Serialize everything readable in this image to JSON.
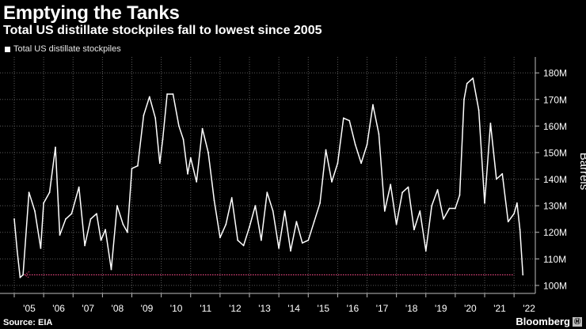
{
  "header": {
    "title": "Emptying the Tanks",
    "subtitle": "Total US distillate stockpiles fall to lowest since 2005"
  },
  "footer": {
    "source": "Source: EIA",
    "brand": "Bloomberg",
    "brand_badge": "Ⓜ"
  },
  "chart_data": {
    "type": "line",
    "title": "Emptying the Tanks",
    "subtitle": "Total US distillate stockpiles fall to lowest since 2005",
    "xlabel": "",
    "ylabel": "Barrels",
    "ylim": [
      97,
      186
    ],
    "xlim": [
      2005.0,
      2022.4
    ],
    "grid": true,
    "legend": "top-left",
    "x_tick_labels": [
      "'05",
      "'06",
      "'07",
      "'08",
      "'09",
      "'10",
      "'11",
      "'12",
      "'13",
      "'14",
      "'15",
      "'16",
      "'17",
      "'18",
      "'19",
      "'20",
      "'21",
      "'22"
    ],
    "x_ticks": [
      2005,
      2006,
      2007,
      2008,
      2009,
      2010,
      2011,
      2012,
      2013,
      2014,
      2015,
      2016,
      2017,
      2018,
      2019,
      2020,
      2021,
      2022
    ],
    "y_ticks": [
      100,
      110,
      120,
      130,
      140,
      150,
      160,
      170,
      180
    ],
    "y_tick_labels": [
      "100M",
      "110M",
      "120M",
      "130M",
      "140M",
      "150M",
      "160M",
      "170M",
      "180M"
    ],
    "series": [
      {
        "name": "Total US distillate stockpiles",
        "color": "#ffffff",
        "x": [
          2005.0,
          2005.1,
          2005.2,
          2005.3,
          2005.5,
          2005.7,
          2005.9,
          2006.0,
          2006.2,
          2006.4,
          2006.55,
          2006.75,
          2006.95,
          2007.2,
          2007.4,
          2007.6,
          2007.8,
          2007.95,
          2008.1,
          2008.3,
          2008.5,
          2008.7,
          2008.85,
          2009.0,
          2009.2,
          2009.4,
          2009.6,
          2009.8,
          2009.95,
          2010.05,
          2010.2,
          2010.4,
          2010.6,
          2010.75,
          2010.9,
          2011.0,
          2011.2,
          2011.4,
          2011.6,
          2011.8,
          2012.0,
          2012.2,
          2012.4,
          2012.6,
          2012.8,
          2013.0,
          2013.2,
          2013.4,
          2013.6,
          2013.8,
          2014.0,
          2014.2,
          2014.4,
          2014.6,
          2014.8,
          2015.0,
          2015.2,
          2015.4,
          2015.6,
          2015.8,
          2016.0,
          2016.2,
          2016.4,
          2016.6,
          2016.8,
          2017.0,
          2017.2,
          2017.4,
          2017.6,
          2017.8,
          2018.0,
          2018.2,
          2018.4,
          2018.6,
          2018.8,
          2019.0,
          2019.2,
          2019.4,
          2019.6,
          2019.8,
          2020.0,
          2020.15,
          2020.3,
          2020.4,
          2020.6,
          2020.8,
          2021.0,
          2021.2,
          2021.4,
          2021.6,
          2021.8,
          2022.0,
          2022.1,
          2022.2,
          2022.3
        ],
        "values": [
          125,
          113,
          103,
          104,
          135,
          128,
          114,
          131,
          135,
          152,
          119,
          125,
          127,
          137,
          115,
          125,
          127,
          117,
          121,
          106,
          130,
          123,
          120,
          144,
          145,
          164,
          171,
          163,
          146,
          155,
          172,
          172,
          160,
          155,
          142,
          148,
          139,
          159,
          150,
          132,
          118,
          123,
          133,
          117,
          115,
          122,
          130,
          117,
          135,
          128,
          114,
          128,
          113,
          124,
          116,
          117,
          124,
          131,
          151,
          139,
          146,
          163,
          162,
          153,
          146,
          153,
          168,
          157,
          128,
          138,
          123,
          135,
          137,
          121,
          128,
          113,
          130,
          136,
          125,
          129,
          129,
          134,
          170,
          176,
          178,
          166,
          131,
          161,
          140,
          142,
          124,
          127,
          131,
          121,
          104
        ]
      }
    ],
    "annotations": [
      {
        "type": "hline",
        "value": 104,
        "color": "#e0457b",
        "style": "dotted"
      }
    ]
  }
}
